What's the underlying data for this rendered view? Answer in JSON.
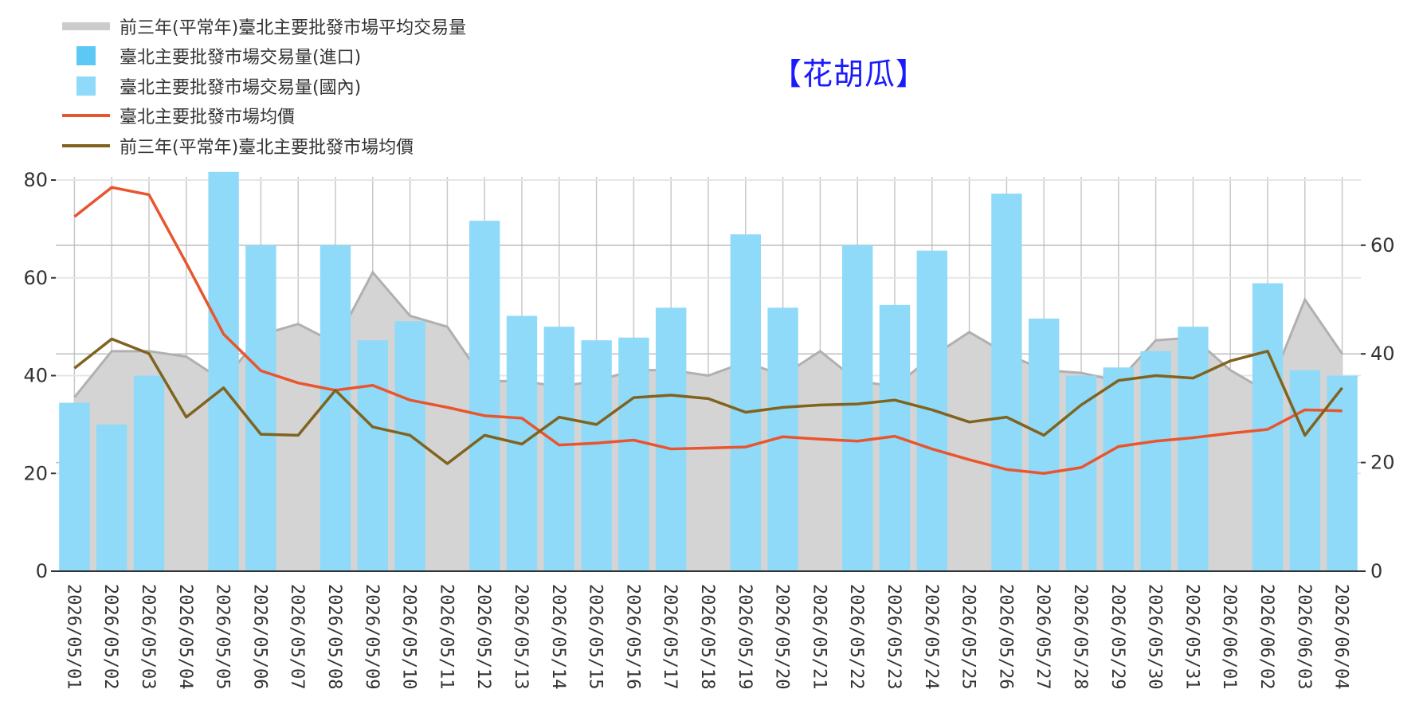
{
  "title": "【花胡瓜】",
  "legend": [
    {
      "label": "前三年(平常年)臺北主要批發市場平均交易量",
      "kind": "area",
      "color": "#cccccc"
    },
    {
      "label": "臺北主要批發市場交易量(進口)",
      "kind": "box",
      "color": "#5ec8f5"
    },
    {
      "label": "臺北主要批發市場交易量(國內)",
      "kind": "box",
      "color": "#8fdaf8"
    },
    {
      "label": "臺北主要批發市場均價",
      "kind": "line",
      "color": "#e8552e"
    },
    {
      "label": "前三年(平常年)臺北主要批發市場均價",
      "kind": "line",
      "color": "#80631f"
    }
  ],
  "chart_data": {
    "type": "bar",
    "categories": [
      "2026/05/01",
      "2026/05/02",
      "2026/05/03",
      "2026/05/04",
      "2026/05/05",
      "2026/05/06",
      "2026/05/07",
      "2026/05/08",
      "2026/05/09",
      "2026/05/10",
      "2026/05/11",
      "2026/05/12",
      "2026/05/13",
      "2026/05/14",
      "2026/05/15",
      "2026/05/16",
      "2026/05/17",
      "2026/05/18",
      "2026/05/19",
      "2026/05/20",
      "2026/05/21",
      "2026/05/22",
      "2026/05/23",
      "2026/05/24",
      "2026/05/25",
      "2026/05/26",
      "2026/05/27",
      "2026/05/28",
      "2026/05/29",
      "2026/05/30",
      "2026/05/31",
      "2026/06/01",
      "2026/06/02",
      "2026/06/03",
      "2026/06/04"
    ],
    "left_axis": {
      "ylim": [
        0,
        80
      ],
      "ticks": [
        "0",
        "20",
        "40",
        "60",
        "80"
      ]
    },
    "right_axis": {
      "ylim": [
        0,
        72
      ],
      "ticks": [
        "0",
        "20",
        "40",
        "60"
      ]
    },
    "series": [
      {
        "name": "前三年(平常年)臺北主要批發市場平均交易量",
        "type": "area",
        "axis": "right",
        "values": [
          32,
          40.5,
          40.5,
          39.5,
          35,
          43.5,
          45.5,
          42,
          55,
          47,
          45,
          35,
          35,
          34,
          35,
          37,
          37,
          36,
          38.5,
          36,
          40.5,
          35,
          34,
          39.5,
          44,
          40,
          37,
          36.5,
          35,
          42.5,
          43,
          37,
          33,
          50,
          40
        ]
      },
      {
        "name": "臺北主要批發市場交易量(進口)",
        "type": "bar",
        "axis": "right",
        "values": [
          null,
          null,
          null,
          null,
          null,
          null,
          null,
          null,
          null,
          null,
          null,
          null,
          null,
          null,
          null,
          null,
          null,
          null,
          null,
          null,
          null,
          null,
          null,
          null,
          null,
          null,
          null,
          null,
          null,
          null,
          null,
          null,
          null,
          null,
          null
        ]
      },
      {
        "name": "臺北主要批發市場交易量(國內)",
        "type": "bar",
        "axis": "right",
        "values": [
          31,
          27,
          36,
          null,
          73.5,
          60,
          null,
          60,
          42.5,
          46,
          null,
          64.5,
          47,
          45,
          42.5,
          43,
          48.5,
          null,
          62,
          48.5,
          null,
          60,
          49,
          59,
          null,
          69.5,
          46.5,
          36,
          37.5,
          40.5,
          45,
          null,
          53,
          37,
          36
        ]
      },
      {
        "name": "臺北主要批發市場均價",
        "type": "line",
        "axis": "left",
        "values": [
          72.5,
          78.5,
          77,
          63,
          48.5,
          41,
          38.5,
          37,
          38,
          35,
          33.5,
          31.8,
          31.3,
          25.8,
          26.2,
          26.8,
          25,
          25.2,
          25.4,
          27.5,
          27,
          26.6,
          27.6,
          25,
          22.8,
          20.8,
          20,
          21.2,
          25.5,
          26.6,
          27.3,
          28.2,
          29,
          33,
          32.8
        ]
      },
      {
        "name": "前三年(平常年)臺北主要批發市場均價",
        "type": "line",
        "axis": "left",
        "values": [
          41.5,
          47.5,
          44.5,
          31.5,
          37.5,
          28,
          27.8,
          37,
          29.5,
          27.8,
          22,
          27.8,
          26,
          31.5,
          30,
          35.5,
          36,
          35.3,
          32.5,
          33.5,
          34,
          34.2,
          35,
          33,
          30.5,
          31.5,
          27.8,
          34,
          39,
          40,
          39.5,
          43,
          45,
          27.8,
          37.5
        ]
      }
    ],
    "grid": true,
    "legend_position": "top-left"
  }
}
